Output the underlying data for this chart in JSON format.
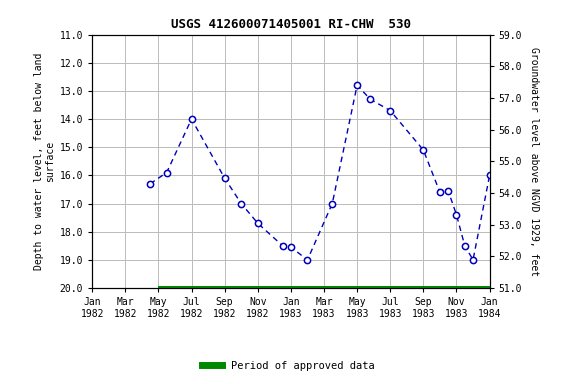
{
  "title": "USGS 412600071405001 RI-CHW  530",
  "x_positions": [
    0,
    2,
    4,
    6,
    8,
    10,
    12,
    14,
    16,
    18,
    20,
    22,
    24
  ],
  "x_labels": [
    "Jan\n1982",
    "Mar\n1982",
    "May\n1982",
    "Jul\n1982",
    "Sep\n1982",
    "Nov\n1982",
    "Jan\n1983",
    "Mar\n1983",
    "May\n1983",
    "Jul\n1983",
    "Sep\n1983",
    "Nov\n1983",
    "Jan\n1984"
  ],
  "points": [
    [
      3.5,
      16.3
    ],
    [
      4.5,
      15.9
    ],
    [
      6.0,
      14.0
    ],
    [
      8.0,
      16.1
    ],
    [
      9.0,
      17.0
    ],
    [
      10.0,
      17.7
    ],
    [
      11.5,
      18.5
    ],
    [
      12.0,
      18.55
    ],
    [
      13.0,
      19.0
    ],
    [
      14.5,
      17.0
    ],
    [
      16.0,
      12.8
    ],
    [
      16.8,
      13.3
    ],
    [
      18.0,
      13.7
    ],
    [
      20.0,
      15.1
    ],
    [
      21.0,
      16.6
    ],
    [
      21.5,
      16.55
    ],
    [
      22.0,
      17.4
    ],
    [
      22.5,
      18.5
    ],
    [
      23.0,
      19.0
    ],
    [
      24.0,
      16.0
    ]
  ],
  "approved_xmin": 4.0,
  "approved_xmax": 24.0,
  "xlim": [
    0,
    24
  ],
  "ylim_left_top": 11.0,
  "ylim_left_bottom": 20.0,
  "ylim_right_top": 59.0,
  "ylim_right_bottom": 51.0,
  "yticks_left": [
    11.0,
    12.0,
    13.0,
    14.0,
    15.0,
    16.0,
    17.0,
    18.0,
    19.0,
    20.0
  ],
  "yticks_right": [
    51.0,
    52.0,
    53.0,
    54.0,
    55.0,
    56.0,
    57.0,
    58.0,
    59.0
  ],
  "ylabel_left": "Depth to water level, feet below land\nsurface",
  "ylabel_right": "Groundwater level above NGVD 1929, feet",
  "legend_label": "Period of approved data",
  "title_fontsize": 9,
  "tick_fontsize": 7,
  "ylabel_fontsize": 7,
  "line_color": "#0000bb",
  "marker_facecolor": "#ffffff",
  "marker_edgecolor": "#0000bb",
  "approved_color": "#008800",
  "grid_color": "#bbbbbb",
  "bg_color": "#ffffff"
}
